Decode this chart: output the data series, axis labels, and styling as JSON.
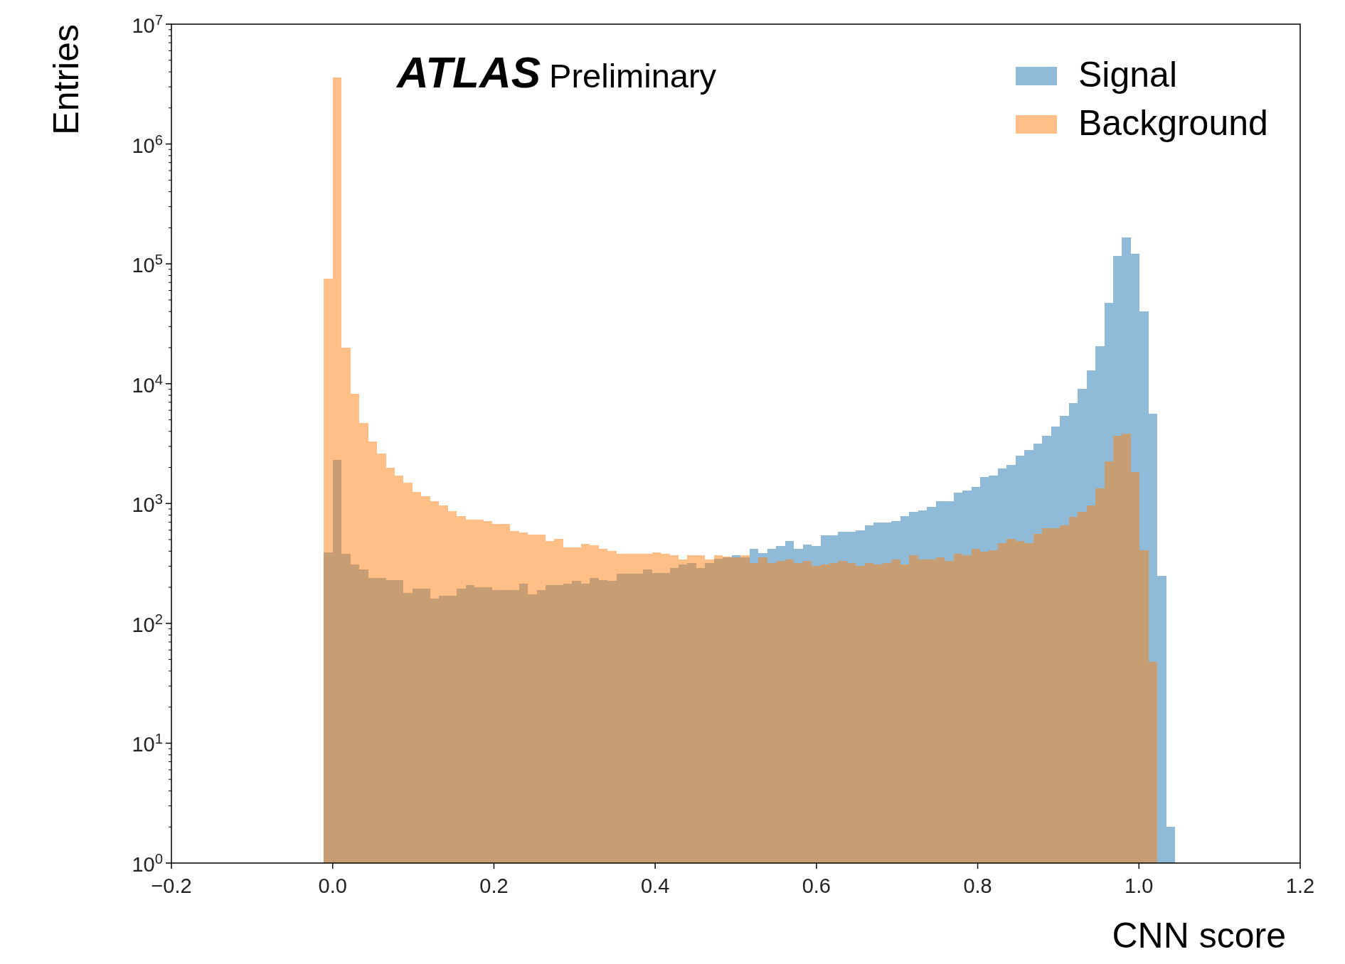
{
  "chart_data": {
    "type": "histogram",
    "xlabel": "CNN score",
    "ylabel": "Entries",
    "annotations": [
      "ATLAS",
      "Preliminary"
    ],
    "log": "y",
    "legend": "top right",
    "grid": false,
    "xlim": [
      -0.2,
      1.2
    ],
    "xticks": [
      {
        "value": -0.2,
        "label": "−0.2"
      },
      {
        "value": 0,
        "label": "0.0"
      },
      0.2,
      0.4,
      0.6,
      0.8,
      {
        "value": 1,
        "label": "1.0"
      },
      1.2
    ],
    "ylim": [
      1,
      10000000
    ],
    "yticks": [
      {
        "value": 1,
        "label": "10$^{0}$"
      },
      {
        "value": 10,
        "label": "10$^{1}$"
      },
      {
        "value": 100,
        "label": "10$^{2}$"
      },
      {
        "value": 1000,
        "label": "10$^{3}$"
      },
      {
        "value": 10000,
        "label": "10$^{4}$"
      },
      {
        "value": 100000,
        "label": "10$^{5}$"
      },
      {
        "value": 1000000,
        "label": "10$^{6}$"
      },
      {
        "value": 10000000,
        "label": "10$^{7}$"
      }
    ],
    "bins": [
      -0.011,
      0,
      0.011,
      0.022,
      0.033,
      0.044,
      0.055,
      0.066,
      0.077,
      0.088,
      0.099,
      0.11,
      0.121,
      0.132,
      0.143,
      0.154,
      0.165,
      0.176,
      0.187,
      0.198,
      0.209,
      0.22,
      0.231,
      0.242,
      0.253,
      0.264,
      0.275,
      0.286,
      0.297,
      0.308,
      0.319,
      0.33,
      0.341,
      0.352,
      0.363,
      0.374,
      0.385,
      0.396,
      0.407,
      0.418,
      0.429,
      0.44,
      0.451,
      0.462,
      0.473,
      0.484,
      0.495,
      0.506,
      0.517,
      0.528,
      0.539,
      0.55,
      0.561,
      0.572,
      0.583,
      0.594,
      0.605,
      0.616,
      0.627,
      0.638,
      0.649,
      0.66,
      0.671,
      0.682,
      0.693,
      0.704,
      0.715,
      0.726,
      0.737,
      0.748,
      0.759,
      0.77,
      0.781,
      0.792,
      0.803,
      0.814,
      0.825,
      0.836,
      0.847,
      0.858,
      0.869,
      0.88,
      0.891,
      0.902,
      0.913,
      0.924,
      0.935,
      0.946,
      0.957,
      0.968,
      0.979,
      0.99,
      1.001,
      1.012,
      1.023,
      1.034,
      1.045
    ],
    "series": [
      {
        "name": "Signal",
        "color": "#8fbbd9",
        "values": [
          390,
          2300,
          380,
          310,
          280,
          240,
          240,
          230,
          230,
          180,
          195,
          195,
          160,
          170,
          170,
          195,
          210,
          200,
          200,
          190,
          190,
          190,
          215,
          175,
          190,
          210,
          210,
          215,
          225,
          215,
          240,
          230,
          225,
          260,
          260,
          260,
          280,
          265,
          265,
          290,
          310,
          320,
          290,
          320,
          345,
          355,
          370,
          355,
          420,
          385,
          420,
          440,
          485,
          420,
          455,
          440,
          540,
          540,
          580,
          580,
          600,
          660,
          690,
          690,
          710,
          790,
          850,
          880,
          940,
          1050,
          1050,
          1240,
          1290,
          1380,
          1660,
          1700,
          1970,
          2100,
          2490,
          2790,
          3180,
          3680,
          4380,
          5400,
          6900,
          9100,
          12900,
          20500,
          47000,
          117000,
          167000,
          121000,
          40000,
          5600,
          250,
          2
        ]
      },
      {
        "name": "Background",
        "color": "#ffbf86",
        "values": [
          75000,
          3600000,
          20000,
          8200,
          4700,
          3300,
          2600,
          2000,
          1700,
          1500,
          1250,
          1150,
          1040,
          960,
          860,
          780,
          730,
          730,
          710,
          680,
          680,
          590,
          570,
          550,
          550,
          490,
          510,
          430,
          430,
          460,
          450,
          420,
          400,
          380,
          380,
          380,
          380,
          390,
          380,
          370,
          340,
          370,
          370,
          340,
          370,
          360,
          355,
          370,
          320,
          355,
          320,
          330,
          340,
          320,
          330,
          300,
          310,
          320,
          330,
          320,
          300,
          320,
          310,
          320,
          340,
          310,
          370,
          340,
          340,
          355,
          330,
          380,
          370,
          420,
          395,
          410,
          470,
          505,
          490,
          470,
          560,
          620,
          620,
          660,
          770,
          850,
          970,
          1340,
          2260,
          3680,
          3820,
          1840,
          410,
          48,
          null,
          null
        ]
      }
    ]
  }
}
